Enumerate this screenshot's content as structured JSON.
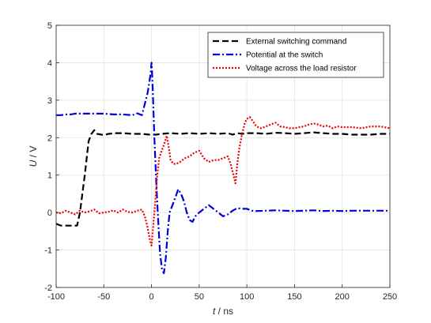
{
  "chart_data": {
    "type": "line",
    "xlabel_var": "t",
    "xlabel_unit": " / ns",
    "ylabel_var": "U",
    "ylabel_unit": " / V",
    "xlim": [
      -100,
      250
    ],
    "ylim": [
      -2,
      5
    ],
    "xticks": [
      -100,
      -50,
      0,
      50,
      100,
      150,
      200,
      250
    ],
    "yticks": [
      -2,
      -1,
      0,
      1,
      2,
      3,
      4,
      5
    ],
    "grid": true,
    "legend_position": "top-right",
    "series": [
      {
        "name": "External switching command",
        "color": "#000000",
        "style": "dashed",
        "points": [
          [
            -100,
            -0.3
          ],
          [
            -95,
            -0.35
          ],
          [
            -85,
            -0.35
          ],
          [
            -78,
            -0.35
          ],
          [
            -75,
            0.0
          ],
          [
            -70,
            1.0
          ],
          [
            -66,
            1.9
          ],
          [
            -63,
            2.1
          ],
          [
            -60,
            2.2
          ],
          [
            -57,
            2.1
          ],
          [
            -50,
            2.07
          ],
          [
            -45,
            2.1
          ],
          [
            -38,
            2.12
          ],
          [
            -30,
            2.12
          ],
          [
            -20,
            2.1
          ],
          [
            -10,
            2.1
          ],
          [
            -2,
            2.08
          ],
          [
            5,
            2.08
          ],
          [
            10,
            2.1
          ],
          [
            20,
            2.12
          ],
          [
            30,
            2.1
          ],
          [
            40,
            2.12
          ],
          [
            50,
            2.1
          ],
          [
            60,
            2.12
          ],
          [
            70,
            2.1
          ],
          [
            80,
            2.12
          ],
          [
            85,
            2.08
          ],
          [
            90,
            2.12
          ],
          [
            95,
            2.1
          ],
          [
            100,
            2.12
          ],
          [
            110,
            2.12
          ],
          [
            120,
            2.1
          ],
          [
            130,
            2.13
          ],
          [
            140,
            2.12
          ],
          [
            150,
            2.1
          ],
          [
            160,
            2.12
          ],
          [
            170,
            2.14
          ],
          [
            180,
            2.12
          ],
          [
            190,
            2.1
          ],
          [
            200,
            2.1
          ],
          [
            210,
            2.08
          ],
          [
            220,
            2.08
          ],
          [
            230,
            2.08
          ],
          [
            240,
            2.1
          ],
          [
            250,
            2.1
          ]
        ]
      },
      {
        "name": "Potential at the switch",
        "color": "#0000dd",
        "style": "dashdot",
        "points": [
          [
            -100,
            2.6
          ],
          [
            -95,
            2.6
          ],
          [
            -90,
            2.62
          ],
          [
            -85,
            2.62
          ],
          [
            -80,
            2.64
          ],
          [
            -70,
            2.64
          ],
          [
            -60,
            2.64
          ],
          [
            -50,
            2.64
          ],
          [
            -40,
            2.62
          ],
          [
            -30,
            2.62
          ],
          [
            -20,
            2.6
          ],
          [
            -15,
            2.65
          ],
          [
            -10,
            2.6
          ],
          [
            -7,
            2.9
          ],
          [
            -4,
            3.2
          ],
          [
            -1,
            3.7
          ],
          [
            0,
            4.0
          ],
          [
            1,
            3.5
          ],
          [
            3,
            2.0
          ],
          [
            5,
            0.8
          ],
          [
            7,
            -0.2
          ],
          [
            9,
            -1.1
          ],
          [
            11,
            -1.5
          ],
          [
            13,
            -1.62
          ],
          [
            15,
            -1.2
          ],
          [
            17,
            -0.5
          ],
          [
            19,
            0.0
          ],
          [
            22,
            0.2
          ],
          [
            25,
            0.4
          ],
          [
            28,
            0.62
          ],
          [
            31,
            0.5
          ],
          [
            34,
            0.3
          ],
          [
            37,
            0.0
          ],
          [
            40,
            -0.2
          ],
          [
            43,
            -0.25
          ],
          [
            46,
            -0.1
          ],
          [
            50,
            0.0
          ],
          [
            55,
            0.1
          ],
          [
            60,
            0.2
          ],
          [
            65,
            0.1
          ],
          [
            70,
            0.0
          ],
          [
            75,
            -0.1
          ],
          [
            80,
            -0.05
          ],
          [
            85,
            0.05
          ],
          [
            90,
            0.12
          ],
          [
            95,
            0.1
          ],
          [
            100,
            0.1
          ],
          [
            105,
            0.05
          ],
          [
            110,
            0.04
          ],
          [
            120,
            0.05
          ],
          [
            130,
            0.06
          ],
          [
            140,
            0.05
          ],
          [
            150,
            0.04
          ],
          [
            160,
            0.05
          ],
          [
            170,
            0.06
          ],
          [
            180,
            0.04
          ],
          [
            190,
            0.05
          ],
          [
            200,
            0.04
          ],
          [
            210,
            0.05
          ],
          [
            220,
            0.05
          ],
          [
            230,
            0.05
          ],
          [
            240,
            0.05
          ],
          [
            250,
            0.05
          ]
        ]
      },
      {
        "name": "Voltage across the load resistor",
        "color": "#ee0000",
        "style": "dotted",
        "points": [
          [
            -100,
            0.0
          ],
          [
            -95,
            -0.02
          ],
          [
            -90,
            0.05
          ],
          [
            -85,
            0.0
          ],
          [
            -80,
            -0.05
          ],
          [
            -75,
            0.05
          ],
          [
            -70,
            0.0
          ],
          [
            -65,
            0.03
          ],
          [
            -60,
            0.08
          ],
          [
            -55,
            -0.02
          ],
          [
            -50,
            0.0
          ],
          [
            -45,
            0.02
          ],
          [
            -40,
            0.06
          ],
          [
            -35,
            0.0
          ],
          [
            -30,
            0.08
          ],
          [
            -25,
            0.02
          ],
          [
            -20,
            0.0
          ],
          [
            -15,
            0.05
          ],
          [
            -10,
            0.08
          ],
          [
            -7,
            -0.1
          ],
          [
            -4,
            -0.4
          ],
          [
            -2,
            -0.7
          ],
          [
            0,
            -0.88
          ],
          [
            2,
            -0.3
          ],
          [
            4,
            0.3
          ],
          [
            6,
            1.0
          ],
          [
            8,
            1.45
          ],
          [
            10,
            1.6
          ],
          [
            13,
            1.8
          ],
          [
            16,
            2.05
          ],
          [
            18,
            1.75
          ],
          [
            20,
            1.4
          ],
          [
            23,
            1.3
          ],
          [
            26,
            1.3
          ],
          [
            30,
            1.35
          ],
          [
            35,
            1.45
          ],
          [
            40,
            1.5
          ],
          [
            45,
            1.6
          ],
          [
            50,
            1.65
          ],
          [
            55,
            1.45
          ],
          [
            60,
            1.35
          ],
          [
            65,
            1.4
          ],
          [
            70,
            1.4
          ],
          [
            75,
            1.45
          ],
          [
            80,
            1.5
          ],
          [
            83,
            1.3
          ],
          [
            86,
            1.0
          ],
          [
            88,
            0.78
          ],
          [
            90,
            1.3
          ],
          [
            92,
            1.7
          ],
          [
            95,
            2.1
          ],
          [
            98,
            2.4
          ],
          [
            100,
            2.5
          ],
          [
            103,
            2.55
          ],
          [
            106,
            2.45
          ],
          [
            110,
            2.3
          ],
          [
            115,
            2.25
          ],
          [
            120,
            2.3
          ],
          [
            125,
            2.35
          ],
          [
            130,
            2.4
          ],
          [
            135,
            2.3
          ],
          [
            140,
            2.28
          ],
          [
            145,
            2.25
          ],
          [
            150,
            2.25
          ],
          [
            155,
            2.28
          ],
          [
            160,
            2.3
          ],
          [
            165,
            2.35
          ],
          [
            170,
            2.38
          ],
          [
            175,
            2.35
          ],
          [
            180,
            2.3
          ],
          [
            185,
            2.32
          ],
          [
            190,
            2.25
          ],
          [
            195,
            2.3
          ],
          [
            200,
            2.28
          ],
          [
            210,
            2.28
          ],
          [
            220,
            2.25
          ],
          [
            230,
            2.3
          ],
          [
            240,
            2.3
          ],
          [
            250,
            2.25
          ]
        ]
      }
    ]
  }
}
